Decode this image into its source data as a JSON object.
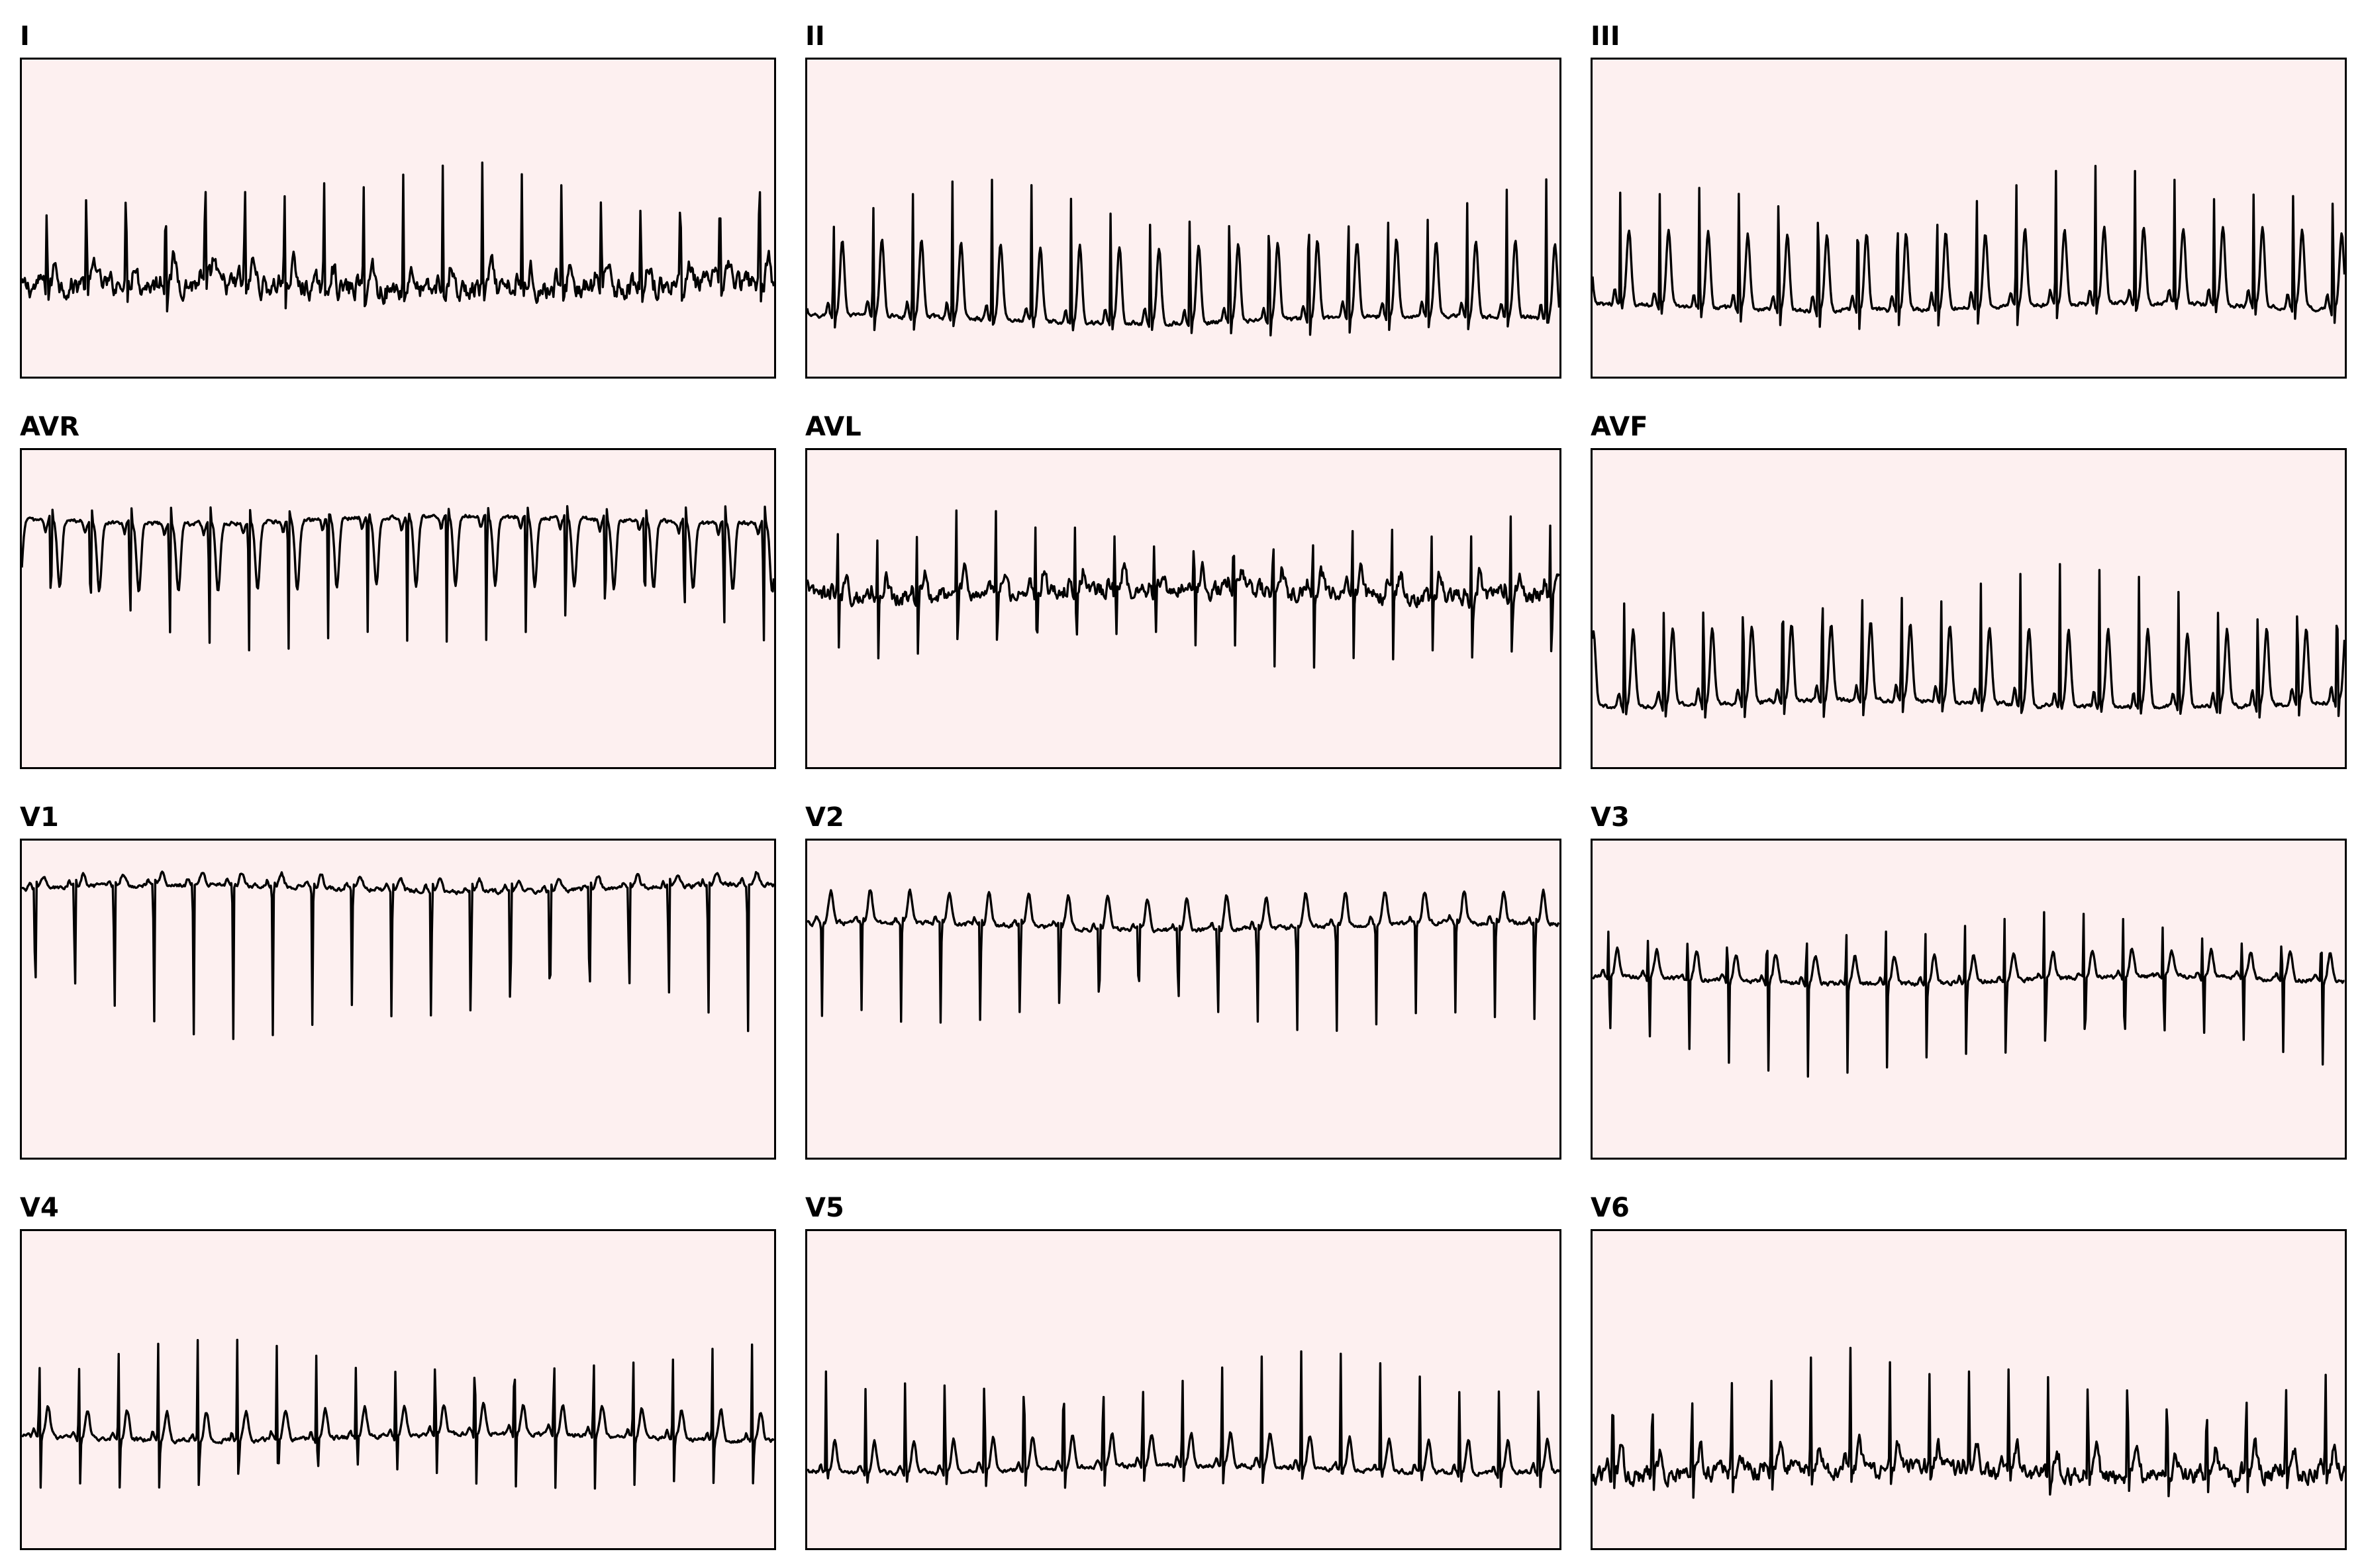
{
  "chart_data": {
    "type": "line",
    "layout": "4x3 grid of ECG leads",
    "grid": false,
    "axes_visible": false,
    "background_color": "#fdf0f0",
    "line_color": "#000000",
    "leads": [
      {
        "name": "I",
        "beats": 19,
        "qrs": "narrow upright spike",
        "baseline": "noisy"
      },
      {
        "name": "II",
        "beats": 19,
        "qrs": "upright spike with tall T",
        "baseline": "mid"
      },
      {
        "name": "III",
        "beats": 19,
        "qrs": "upright spike with tall T",
        "baseline": "mid"
      },
      {
        "name": "AVR",
        "beats": 19,
        "qrs": "deep negative spike",
        "baseline": "high"
      },
      {
        "name": "AVL",
        "beats": 19,
        "qrs": "biphasic, noisy",
        "baseline": "mid"
      },
      {
        "name": "AVF",
        "beats": 19,
        "qrs": "upright spike with tall T",
        "baseline": "mid"
      },
      {
        "name": "V1",
        "beats": 19,
        "qrs": "deep negative spike",
        "baseline": "high"
      },
      {
        "name": "V2",
        "beats": 19,
        "qrs": "deep negative spike",
        "baseline": "upper"
      },
      {
        "name": "V3",
        "beats": 19,
        "qrs": "biphasic RS",
        "baseline": "mid"
      },
      {
        "name": "V4",
        "beats": 19,
        "qrs": "biphasic RS",
        "baseline": "lower"
      },
      {
        "name": "V5",
        "beats": 19,
        "qrs": "upright spike",
        "baseline": "lower"
      },
      {
        "name": "V6",
        "beats": 19,
        "qrs": "upright spike, noisy",
        "baseline": "lower"
      }
    ]
  }
}
